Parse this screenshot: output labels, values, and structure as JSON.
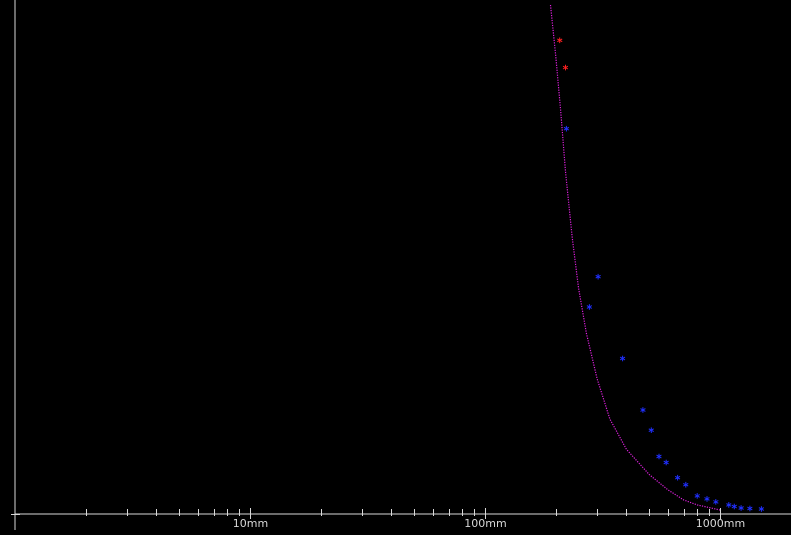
{
  "chart_data": {
    "type": "scatter",
    "x_scale": "log",
    "x_unit": "mm",
    "xlim": [
      1,
      1500
    ],
    "ylim": [
      0,
      1
    ],
    "grid": false,
    "legend": "none",
    "x_tick_labels": [
      {
        "value": 10,
        "label": "10mm"
      },
      {
        "value": 100,
        "label": "100mm"
      },
      {
        "value": 1000,
        "label": "1000mm"
      }
    ],
    "x_minor_ticks": [
      2,
      3,
      4,
      5,
      6,
      7,
      8,
      9,
      20,
      30,
      40,
      50,
      60,
      70,
      80,
      90,
      200,
      300,
      400,
      500,
      600,
      700,
      800,
      900
    ],
    "series": [
      {
        "kind": "points",
        "marker": "*",
        "color": "#ff2020",
        "points": [
          {
            "x": 208,
            "y": 0.93
          },
          {
            "x": 220,
            "y": 0.876
          }
        ]
      },
      {
        "kind": "points",
        "marker": "*",
        "color": "#2030ff",
        "points": [
          {
            "x": 222,
            "y": 0.755
          },
          {
            "x": 303,
            "y": 0.462
          },
          {
            "x": 278,
            "y": 0.402
          },
          {
            "x": 385,
            "y": 0.3
          },
          {
            "x": 470,
            "y": 0.198
          },
          {
            "x": 510,
            "y": 0.158
          },
          {
            "x": 550,
            "y": 0.106
          },
          {
            "x": 590,
            "y": 0.094
          },
          {
            "x": 660,
            "y": 0.064
          },
          {
            "x": 715,
            "y": 0.05
          },
          {
            "x": 800,
            "y": 0.028
          },
          {
            "x": 880,
            "y": 0.022
          },
          {
            "x": 960,
            "y": 0.016
          },
          {
            "x": 1090,
            "y": 0.01
          },
          {
            "x": 1150,
            "y": 0.007
          },
          {
            "x": 1230,
            "y": 0.004
          },
          {
            "x": 1340,
            "y": 0.003
          },
          {
            "x": 1500,
            "y": 0.002
          }
        ]
      },
      {
        "kind": "curve",
        "color": "#e020e0",
        "points": [
          {
            "x": 190,
            "y": 1.0
          },
          {
            "x": 200,
            "y": 0.9
          },
          {
            "x": 210,
            "y": 0.79
          },
          {
            "x": 220,
            "y": 0.67
          },
          {
            "x": 235,
            "y": 0.54
          },
          {
            "x": 250,
            "y": 0.44
          },
          {
            "x": 270,
            "y": 0.35
          },
          {
            "x": 300,
            "y": 0.26
          },
          {
            "x": 340,
            "y": 0.18
          },
          {
            "x": 400,
            "y": 0.12
          },
          {
            "x": 500,
            "y": 0.07
          },
          {
            "x": 600,
            "y": 0.04
          },
          {
            "x": 700,
            "y": 0.02
          },
          {
            "x": 800,
            "y": 0.01
          },
          {
            "x": 1000,
            "y": 0.0
          }
        ]
      }
    ]
  }
}
